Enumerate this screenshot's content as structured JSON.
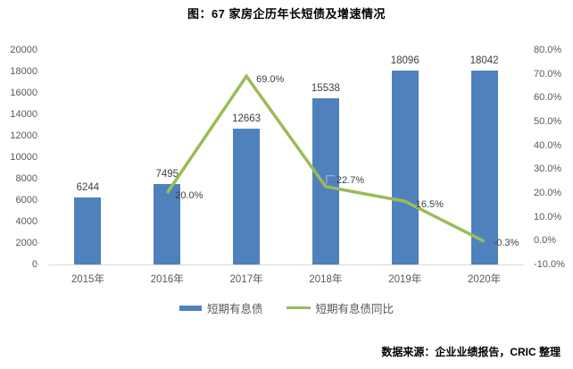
{
  "title": "图：67 家房企历年长短债及增速情况",
  "source": "数据来源：企业业绩报告，CRIC 整理",
  "colors": {
    "bar": "#4f81bd",
    "line": "#9bbb59",
    "axis": "#d9d9d9",
    "leader": "#bfbfbf",
    "tick_text": "#595959",
    "data_label_text": "#404040"
  },
  "legend": {
    "items": [
      {
        "label": "短期有息债",
        "marker": "bar-swatch"
      },
      {
        "label": "短期有息债同比",
        "marker": "line-swatch"
      }
    ]
  },
  "chart_data": {
    "type": "bar",
    "subtype": "bar+line dual-axis combo",
    "title": "图：67 家房企历年长短债及增速情况",
    "categories": [
      "2015年",
      "2016年",
      "2017年",
      "2018年",
      "2019年",
      "2020年"
    ],
    "series": [
      {
        "name": "短期有息债",
        "type": "bar",
        "axis": "left",
        "values": [
          6244,
          7495,
          12663,
          15538,
          18096,
          18042
        ],
        "data_labels": [
          "6244",
          "7495",
          "12663",
          "15538",
          "18096",
          "18042"
        ]
      },
      {
        "name": "短期有息债同比",
        "type": "line",
        "axis": "right",
        "values": [
          null,
          20.0,
          69.0,
          22.7,
          16.5,
          -0.3
        ],
        "data_labels": [
          "",
          "20.0%",
          "69.0%",
          "22.7%",
          "16.5%",
          "-0.3%"
        ]
      }
    ],
    "left_axis": {
      "min": 0,
      "max": 20000,
      "step": 2000,
      "tick_labels": [
        "0",
        "2000",
        "4000",
        "6000",
        "8000",
        "10000",
        "12000",
        "14000",
        "16000",
        "18000",
        "20000"
      ]
    },
    "right_axis": {
      "min": -10,
      "max": 80,
      "step": 10,
      "tick_labels": [
        "-10.0%",
        "0.0%",
        "10.0%",
        "20.0%",
        "30.0%",
        "40.0%",
        "50.0%",
        "60.0%",
        "70.0%",
        "80.0%"
      ]
    },
    "grid": "off",
    "legend_position": "bottom"
  }
}
